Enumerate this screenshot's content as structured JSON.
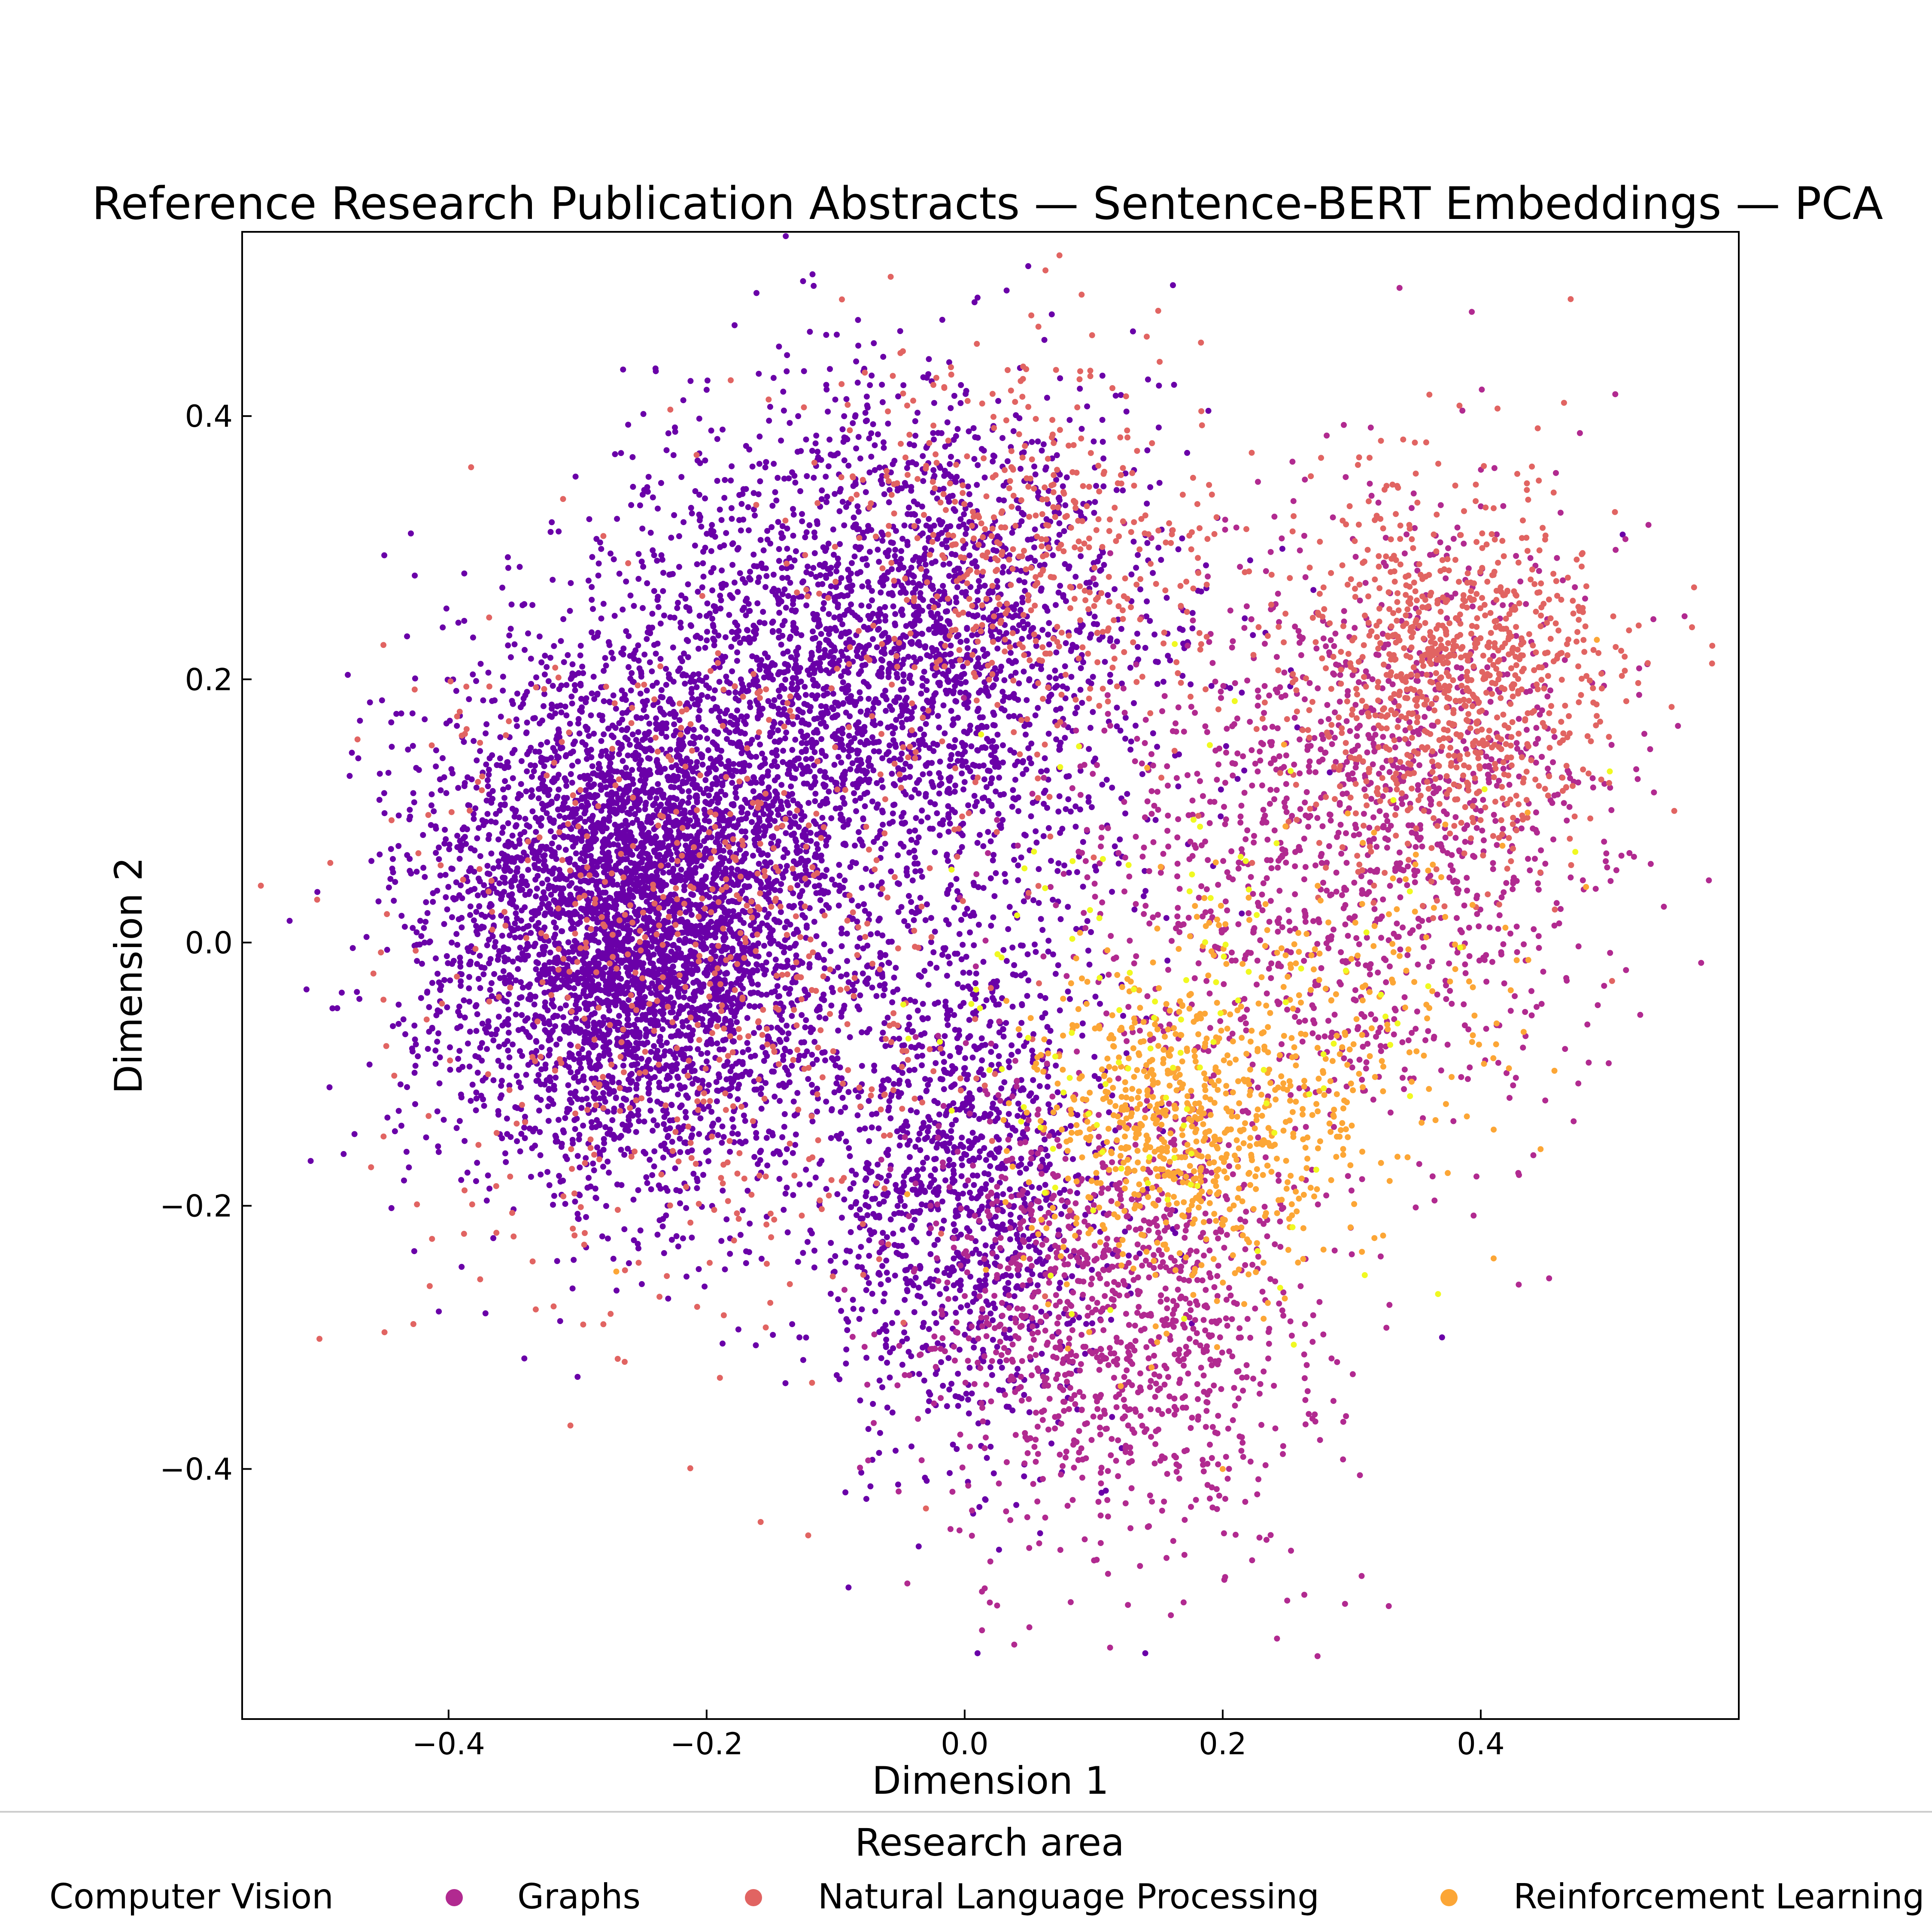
{
  "chart_data": {
    "type": "scatter",
    "title": "Reference Research Publication Abstracts — Sentence-BERT Embeddings — PCA",
    "xlabel": "Dimension 1",
    "ylabel": "Dimension 2",
    "xlim": [
      -0.56,
      0.6
    ],
    "ylim": [
      -0.59,
      0.54
    ],
    "xticks": [
      -0.4,
      -0.2,
      0.0,
      0.2,
      0.4
    ],
    "yticks": [
      -0.4,
      -0.2,
      0.0,
      0.2,
      0.4
    ],
    "xtick_labels": [
      "−0.4",
      "−0.2",
      "0.0",
      "0.2",
      "0.4"
    ],
    "ytick_labels": [
      "−0.4",
      "−0.2",
      "0.0",
      "0.2",
      "0.4"
    ],
    "grid": false,
    "legend": {
      "title": "Research area",
      "placement": "bottom",
      "entries": [
        {
          "name": "Computer Vision",
          "color": "#6a00a8"
        },
        {
          "name": "Graphs",
          "color": "#b12a90"
        },
        {
          "name": "Natural Language Processing",
          "color": "#e16462"
        },
        {
          "name": "Reinforcement Learning",
          "color": "#fca636"
        }
      ]
    },
    "series": [
      {
        "name": "Computer Vision",
        "color": "#6a00a8",
        "clusters": [
          {
            "center": [
              -0.25,
              0.02
            ],
            "spread": [
              0.08,
              0.1
            ],
            "weight": 0.55
          },
          {
            "center": [
              -0.05,
              0.22
            ],
            "spread": [
              0.1,
              0.1
            ],
            "weight": 0.3
          },
          {
            "center": [
              0.0,
              -0.18
            ],
            "spread": [
              0.06,
              0.1
            ],
            "weight": 0.15
          }
        ],
        "sample_points": [
          [
            -0.49,
            -0.05
          ],
          [
            -0.47,
            0.14
          ],
          [
            -0.3,
            -0.33
          ],
          [
            0.01,
            0.49
          ],
          [
            0.14,
            -0.54
          ],
          [
            0.01,
            -0.54
          ],
          [
            -0.09,
            -0.49
          ],
          [
            -0.2,
            0.42
          ],
          [
            0.51,
            0.31
          ],
          [
            0.37,
            -0.3
          ]
        ]
      },
      {
        "name": "Graphs",
        "color": "#b12a90",
        "clusters": [
          {
            "center": [
              0.12,
              -0.28
            ],
            "spread": [
              0.08,
              0.09
            ],
            "weight": 0.45
          },
          {
            "center": [
              0.35,
              0.1
            ],
            "spread": [
              0.08,
              0.12
            ],
            "weight": 0.35
          },
          {
            "center": [
              0.22,
              0.05
            ],
            "spread": [
              0.08,
              0.1
            ],
            "weight": 0.2
          }
        ],
        "sample_points": [
          [
            0.21,
            -0.45
          ],
          [
            0.25,
            -0.5
          ],
          [
            0.05,
            -0.46
          ],
          [
            0.4,
            0.1
          ],
          [
            0.45,
            -0.12
          ]
        ]
      },
      {
        "name": "Natural Language Processing",
        "color": "#e16462",
        "clusters": [
          {
            "center": [
              0.38,
              0.2
            ],
            "spread": [
              0.06,
              0.07
            ],
            "weight": 0.45
          },
          {
            "center": [
              -0.2,
              -0.02
            ],
            "spread": [
              0.12,
              0.14
            ],
            "weight": 0.3
          },
          {
            "center": [
              0.05,
              0.3
            ],
            "spread": [
              0.08,
              0.08
            ],
            "weight": 0.25
          }
        ],
        "sample_points": [
          [
            0.55,
            0.1
          ],
          [
            0.15,
            0.48
          ],
          [
            -0.28,
            -0.29
          ],
          [
            0.41,
            0.33
          ],
          [
            -0.03,
            -0.43
          ]
        ]
      },
      {
        "name": "Reinforcement Learning",
        "color": "#fca636",
        "clusters": [
          {
            "center": [
              0.17,
              -0.14
            ],
            "spread": [
              0.06,
              0.06
            ],
            "weight": 0.75
          },
          {
            "center": [
              0.3,
              -0.05
            ],
            "spread": [
              0.07,
              0.08
            ],
            "weight": 0.25
          }
        ],
        "sample_points": [
          [
            0.41,
            -0.24
          ],
          [
            0.49,
            0.23
          ],
          [
            0.2,
            -0.4
          ],
          [
            -0.27,
            -0.25
          ]
        ]
      },
      {
        "name": "",
        "color": "#f0f921",
        "clusters": [
          {
            "center": [
              0.15,
              -0.05
            ],
            "spread": [
              0.1,
              0.12
            ],
            "weight": 1.0
          }
        ],
        "sample_points": [
          [
            0.5,
            0.13
          ],
          [
            0.19,
            0.15
          ]
        ]
      }
    ]
  }
}
